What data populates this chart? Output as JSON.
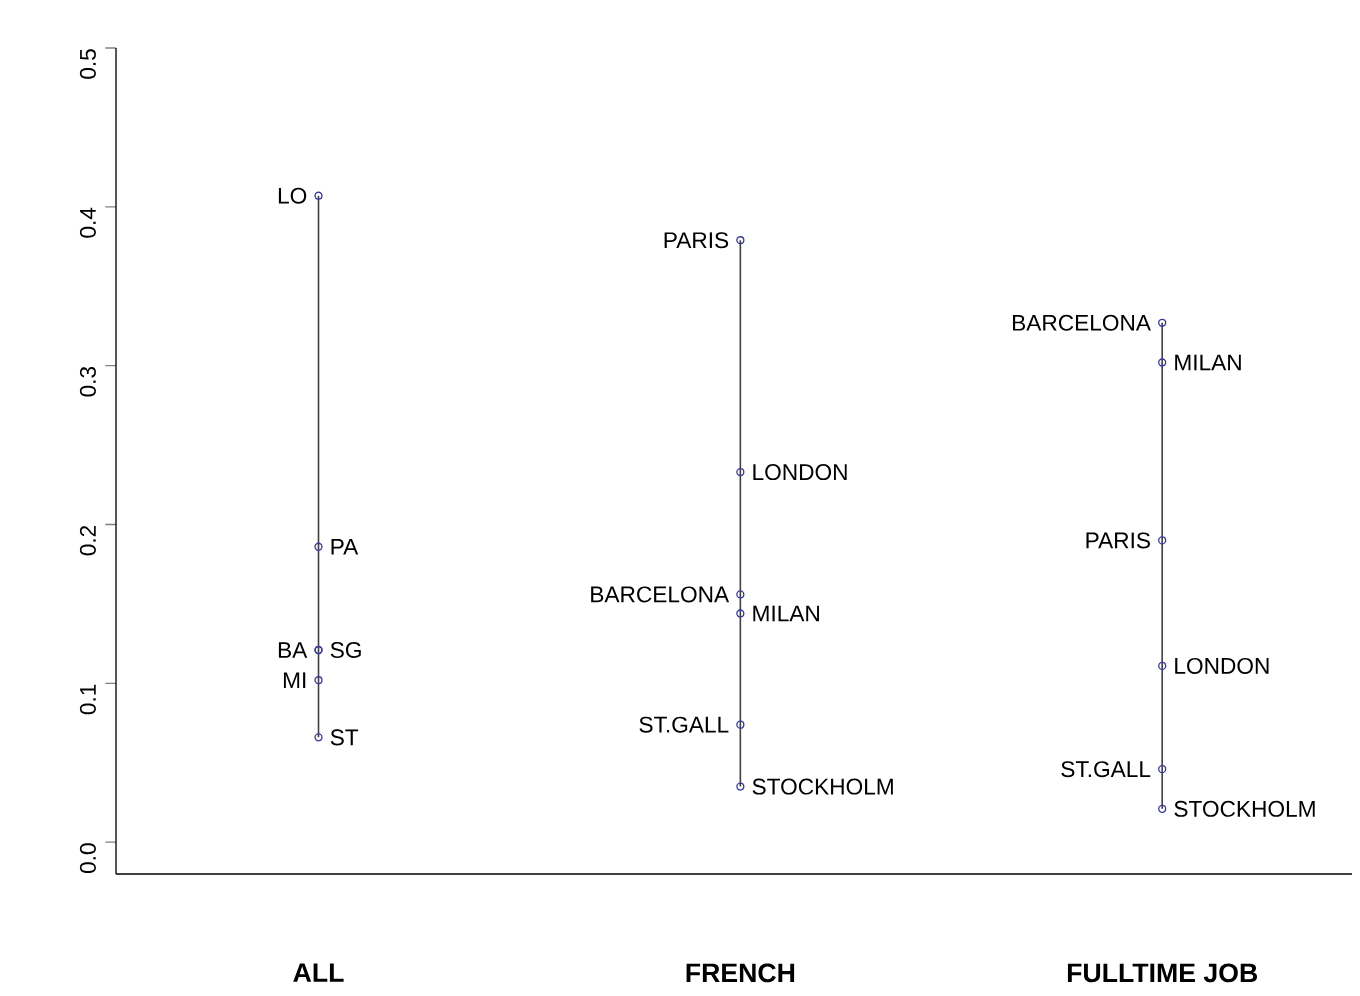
{
  "chart_data": {
    "type": "line",
    "categories": [
      "ALL",
      "FRENCH",
      "FULLTIME JOB"
    ],
    "ylim": [
      -0.02,
      0.5
    ],
    "yticks": [
      {
        "value": 0,
        "label": "0.0"
      },
      0.1,
      0.2,
      0.3,
      0.4,
      0.5
    ],
    "marker": "circle",
    "line_style": "solid",
    "grid": false,
    "series": [
      {
        "color": "#404040",
        "x": [
          "ALL",
          "ALL",
          "ALL",
          "ALL",
          "ALL",
          "ALL"
        ],
        "values": [
          0.407,
          0.186,
          0.121,
          0.121,
          0.102,
          0.066
        ],
        "colors": [
          "#3a3a9e",
          "#3a3a9e",
          "#3a3a9e",
          "#3a3a9e",
          "#3a3a9e",
          "#3a3a9e"
        ]
      },
      {
        "color": "#404040",
        "x": [
          "FRENCH",
          "FRENCH",
          "FRENCH",
          "FRENCH",
          "FRENCH",
          "FRENCH"
        ],
        "values": [
          0.379,
          0.233,
          0.156,
          0.144,
          0.074,
          0.035
        ],
        "colors": [
          "#3a3a9e",
          "#3a3a9e",
          "#3a3a9e",
          "#3a3a9e",
          "#3a3a9e",
          "#3a3a9e"
        ]
      },
      {
        "color": "#404040",
        "x": [
          "FULLTIME JOB",
          "FULLTIME JOB",
          "FULLTIME JOB",
          "FULLTIME JOB",
          "FULLTIME JOB",
          "FULLTIME JOB"
        ],
        "values": [
          0.327,
          0.302,
          0.19,
          0.111,
          0.046,
          0.021
        ],
        "colors": [
          "#3a3a9e",
          "#3a3a9e",
          "#3a3a9e",
          "#3a3a9e",
          "#3a3a9e",
          "#3a3a9e"
        ]
      }
    ],
    "annotations": [
      {
        "text": "LO",
        "x": "ALL",
        "y": 0.407
      },
      {
        "text": "PA",
        "x": "ALL",
        "y": 0.186
      },
      {
        "text": "BA",
        "x": "ALL",
        "y": 0.121
      },
      {
        "text": "SG",
        "x": "ALL",
        "y": 0.121
      },
      {
        "text": "MI",
        "x": "ALL",
        "y": 0.102
      },
      {
        "text": "ST",
        "x": "ALL",
        "y": 0.066
      },
      {
        "text": "PARIS",
        "x": "FRENCH",
        "y": 0.379
      },
      {
        "text": "LONDON",
        "x": "FRENCH",
        "y": 0.233
      },
      {
        "text": "BARCELONA",
        "x": "FRENCH",
        "y": 0.156
      },
      {
        "text": "MILAN",
        "x": "FRENCH",
        "y": 0.144
      },
      {
        "text": "ST.GALL",
        "x": "FRENCH",
        "y": 0.074
      },
      {
        "text": "STOCKHOLM",
        "x": "FRENCH",
        "y": 0.035
      },
      {
        "text": "BARCELONA",
        "x": "FULLTIME JOB",
        "y": 0.327
      },
      {
        "text": "MILAN",
        "x": "FULLTIME JOB",
        "y": 0.302
      },
      {
        "text": "PARIS",
        "x": "FULLTIME JOB",
        "y": 0.19
      },
      {
        "text": "LONDON",
        "x": "FULLTIME JOB",
        "y": 0.111
      },
      {
        "text": "ST.GALL",
        "x": "FULLTIME JOB",
        "y": 0.046
      },
      {
        "text": "STOCKHOLM",
        "x": "FULLTIME JOB",
        "y": 0.021
      }
    ]
  }
}
